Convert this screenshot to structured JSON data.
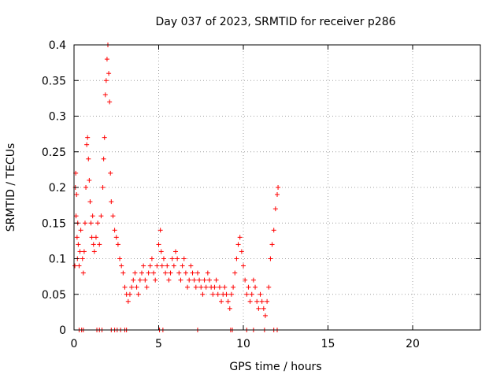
{
  "chart_data": {
    "type": "scatter",
    "title": "Day 037 of 2023, SRMTID for receiver p286",
    "xlabel": "GPS time / hours",
    "ylabel": "SRMTID / TECUs",
    "xlim": [
      0,
      24
    ],
    "ylim": [
      0,
      0.4
    ],
    "xticks": [
      0,
      5,
      10,
      15,
      20
    ],
    "xtick_labels": [
      "0",
      "5",
      "10",
      "15",
      "20"
    ],
    "yticks": [
      0,
      0.05,
      0.1,
      0.15,
      0.2,
      0.25,
      0.3,
      0.35,
      0.4
    ],
    "ytick_labels": [
      "0",
      "0.05",
      "0.1",
      "0.15",
      "0.2",
      "0.25",
      "0.3",
      "0.35",
      "0.4"
    ],
    "grid": true,
    "marker": "+",
    "color": "#ff0000",
    "series": [
      {
        "name": "SRMTID",
        "x": [
          0.05,
          0.08,
          0.1,
          0.12,
          0.15,
          0.18,
          0.2,
          0.22,
          0.25,
          0.3,
          0.35,
          0.4,
          0.5,
          0.55,
          0.6,
          0.65,
          0.7,
          0.75,
          0.8,
          0.85,
          0.9,
          0.95,
          1.0,
          1.05,
          1.1,
          1.15,
          1.2,
          1.3,
          1.4,
          1.5,
          1.6,
          1.7,
          1.75,
          1.8,
          1.85,
          1.9,
          1.95,
          2.0,
          2.05,
          2.1,
          2.15,
          2.2,
          2.3,
          2.4,
          2.5,
          2.6,
          2.7,
          2.8,
          2.9,
          3.0,
          3.1,
          3.2,
          3.3,
          3.4,
          3.5,
          3.6,
          3.7,
          3.8,
          3.9,
          4.0,
          4.1,
          4.2,
          4.3,
          4.4,
          4.5,
          4.6,
          4.7,
          4.8,
          4.9,
          5.0,
          5.1,
          5.15,
          5.2,
          5.3,
          5.4,
          5.5,
          5.6,
          5.7,
          5.8,
          5.9,
          6.0,
          6.1,
          6.2,
          6.3,
          6.4,
          6.5,
          6.6,
          6.7,
          6.8,
          6.9,
          7.0,
          7.1,
          7.2,
          7.3,
          7.4,
          7.5,
          7.6,
          7.7,
          7.8,
          7.9,
          8.0,
          8.1,
          8.2,
          8.3,
          8.4,
          8.5,
          8.6,
          8.7,
          8.8,
          8.9,
          9.0,
          9.1,
          9.2,
          9.3,
          9.4,
          9.5,
          9.6,
          9.7,
          9.8,
          9.9,
          10.0,
          10.1,
          10.2,
          10.3,
          10.4,
          10.5,
          10.6,
          10.7,
          10.8,
          10.9,
          11.0,
          11.1,
          11.2,
          11.3,
          11.4,
          11.5,
          11.6,
          11.7,
          11.8,
          11.9,
          12.0,
          12.05,
          0.3,
          0.45,
          0.55,
          1.35,
          1.5,
          1.65,
          2.2,
          2.4,
          2.55,
          2.75,
          3.0,
          3.1,
          5.05,
          5.25,
          7.3,
          9.25,
          9.35,
          10.2,
          10.6,
          11.25,
          11.8,
          12.0
        ],
        "y": [
          0.09,
          0.2,
          0.22,
          0.16,
          0.19,
          0.13,
          0.1,
          0.15,
          0.12,
          0.09,
          0.11,
          0.14,
          0.1,
          0.08,
          0.11,
          0.15,
          0.2,
          0.26,
          0.27,
          0.24,
          0.21,
          0.18,
          0.15,
          0.13,
          0.16,
          0.12,
          0.11,
          0.13,
          0.15,
          0.12,
          0.16,
          0.2,
          0.24,
          0.27,
          0.33,
          0.35,
          0.38,
          0.4,
          0.36,
          0.32,
          0.22,
          0.18,
          0.16,
          0.14,
          0.13,
          0.12,
          0.1,
          0.09,
          0.08,
          0.06,
          0.05,
          0.04,
          0.05,
          0.06,
          0.07,
          0.08,
          0.06,
          0.05,
          0.07,
          0.08,
          0.09,
          0.07,
          0.06,
          0.08,
          0.09,
          0.1,
          0.08,
          0.07,
          0.09,
          0.12,
          0.14,
          0.11,
          0.09,
          0.1,
          0.08,
          0.09,
          0.07,
          0.08,
          0.1,
          0.09,
          0.11,
          0.1,
          0.08,
          0.07,
          0.09,
          0.1,
          0.08,
          0.06,
          0.07,
          0.09,
          0.08,
          0.07,
          0.06,
          0.08,
          0.07,
          0.06,
          0.05,
          0.07,
          0.06,
          0.08,
          0.07,
          0.06,
          0.05,
          0.06,
          0.07,
          0.05,
          0.06,
          0.04,
          0.05,
          0.06,
          0.05,
          0.04,
          0.03,
          0.05,
          0.06,
          0.08,
          0.1,
          0.12,
          0.13,
          0.11,
          0.09,
          0.07,
          0.05,
          0.06,
          0.04,
          0.05,
          0.07,
          0.06,
          0.04,
          0.03,
          0.05,
          0.04,
          0.03,
          0.02,
          0.04,
          0.06,
          0.1,
          0.12,
          0.14,
          0.17,
          0.19,
          0.2,
          0.0,
          0.0,
          0.0,
          0.0,
          0.0,
          0.0,
          0.0,
          0.0,
          0.0,
          0.0,
          0.0,
          0.0,
          0.0,
          0.0,
          0.0,
          0.0,
          0.0,
          0.0,
          0.0,
          0.0,
          0.0,
          0.0
        ]
      }
    ]
  }
}
